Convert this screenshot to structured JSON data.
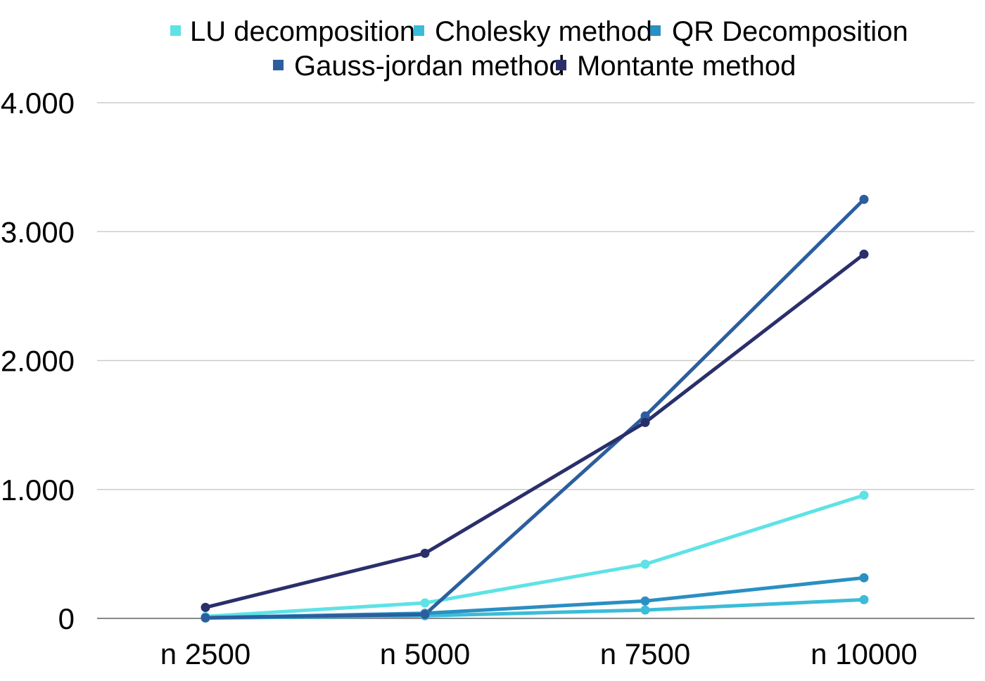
{
  "chart_data": {
    "type": "line",
    "categories": [
      "n 2500",
      "n 5000",
      "n 7500",
      "n 10000"
    ],
    "y_tick_labels": [
      "0",
      "1.000",
      "2.000",
      "3.000",
      "4.000"
    ],
    "ylim": [
      0,
      4000
    ],
    "y_ticks": [
      0,
      1000,
      2000,
      3000,
      4000
    ],
    "grid": true,
    "legend_position": "top",
    "series": [
      {
        "name": "LU decomposition",
        "color": "#5ee2e6",
        "values": [
          15,
          120,
          420,
          955
        ]
      },
      {
        "name": "Cholesky method",
        "color": "#3bbcd8",
        "values": [
          3,
          20,
          65,
          145
        ]
      },
      {
        "name": "QR Decomposition",
        "color": "#2a8fc2",
        "values": [
          5,
          40,
          135,
          315
        ]
      },
      {
        "name": "Gauss-jordan method",
        "color": "#2c5e9e",
        "values": [
          5,
          30,
          1570,
          3250
        ]
      },
      {
        "name": "Montante method",
        "color": "#2a2f6b",
        "values": [
          85,
          505,
          1520,
          2825
        ]
      }
    ]
  }
}
